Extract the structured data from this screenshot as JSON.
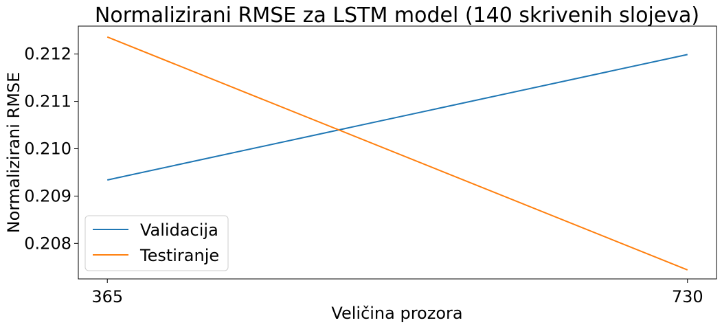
{
  "chart_data": {
    "type": "line",
    "title": "Normalizirani RMSE za LSTM model (140 skrivenih slojeva)",
    "xlabel": "Veličina prozora",
    "ylabel": "Normalizirani RMSE",
    "x": [
      365,
      730
    ],
    "x_tick_labels": [
      "365",
      "730"
    ],
    "y_ticks": [
      0.208,
      0.209,
      0.21,
      0.211,
      0.212
    ],
    "y_tick_labels": [
      "0.208",
      "0.209",
      "0.210",
      "0.211",
      "0.212"
    ],
    "ylim": [
      0.20725,
      0.21259
    ],
    "xlim": [
      346.75,
      748.25
    ],
    "grid": false,
    "legend": "lower-left",
    "series": [
      {
        "name": "Validacija",
        "color": "#1f77b4",
        "values": [
          0.20934,
          0.21199
        ]
      },
      {
        "name": "Testiranje",
        "color": "#ff7f0e",
        "values": [
          0.21236,
          0.20744
        ]
      }
    ]
  }
}
